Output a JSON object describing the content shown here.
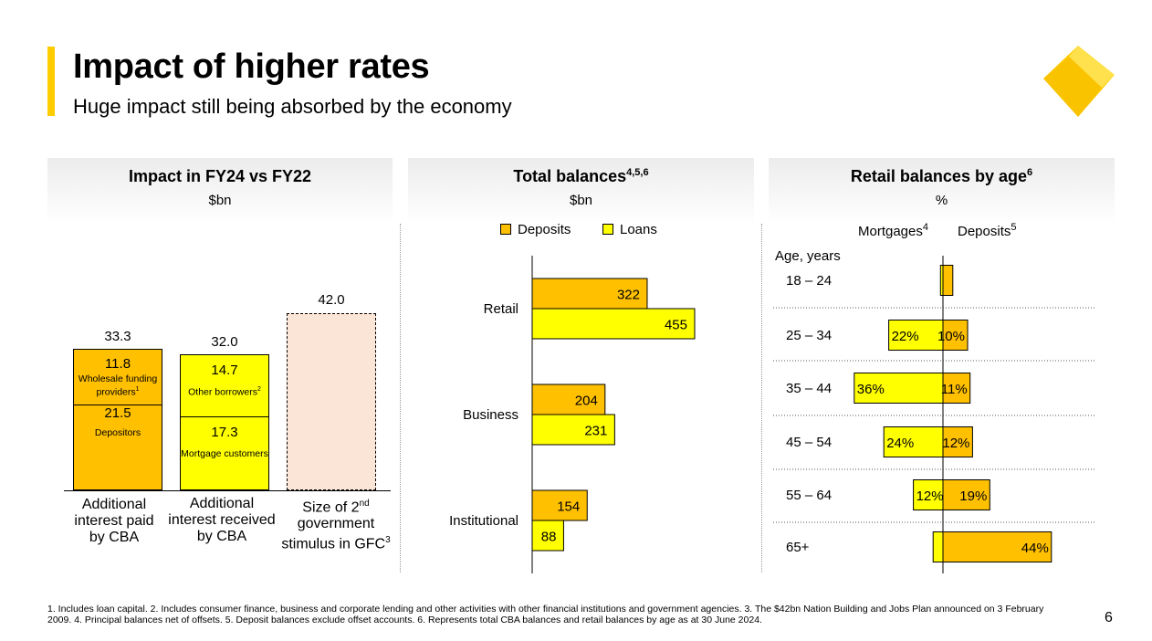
{
  "header": {
    "title": "Impact of higher rates",
    "subtitle": "Huge impact still being absorbed by the economy"
  },
  "colors": {
    "accent": "#FFCC00",
    "deposits": "#FFC000",
    "loans": "#FFFF00",
    "stimulus_fill": "#FBE5D6"
  },
  "panels": {
    "impact": {
      "title": "Impact in FY24 vs FY22",
      "unit": "$bn"
    },
    "balances": {
      "title": "Total balances",
      "title_sup": "4,5,6",
      "unit": "$bn"
    },
    "age": {
      "title": "Retail balances by age",
      "title_sup": "6",
      "unit": "%"
    }
  },
  "chart_data": [
    {
      "type": "bar",
      "stacked": true,
      "categories": [
        "Additional interest paid by CBA",
        "Additional interest received by CBA",
        "Size of 2nd government stimulus in GFC"
      ],
      "category_labels": [
        {
          "text": "Additional interest paid by CBA",
          "sup": ""
        },
        {
          "text_parts": [
            "Additional",
            "interest received",
            "by CBA"
          ]
        },
        {
          "text_parts": [
            "Size of 2",
            "nd",
            "government",
            "stimulus in GFC",
            "3"
          ]
        }
      ],
      "totals": [
        "33.3",
        "32.0",
        "42.0"
      ],
      "stacks": [
        [
          {
            "name": "Depositors",
            "value": 21.5,
            "value_label": "21.5"
          },
          {
            "name": "Wholesale funding providers",
            "sup": "1",
            "value": 11.8,
            "value_label": "11.8"
          }
        ],
        [
          {
            "name": "Mortgage customers",
            "value": 17.3,
            "value_label": "17.3"
          },
          {
            "name": "Other borrowers",
            "sup": "2",
            "value": 14.7,
            "value_label": "14.7"
          }
        ],
        [
          {
            "name": "",
            "value": 42.0,
            "value_label": ""
          }
        ]
      ],
      "ylim": [
        0,
        50
      ]
    },
    {
      "type": "bar",
      "orientation": "horizontal",
      "categories": [
        "Retail",
        "Business",
        "Institutional"
      ],
      "series": [
        {
          "name": "Deposits",
          "values": [
            322,
            204,
            154
          ]
        },
        {
          "name": "Loans",
          "values": [
            455,
            231,
            88
          ]
        }
      ],
      "xlim": [
        0,
        500
      ],
      "legend": "top"
    },
    {
      "type": "bar",
      "orientation": "horizontal",
      "diverging": true,
      "y_title": "Age, years",
      "categories": [
        "18 – 24",
        "25 – 34",
        "35 – 44",
        "45 – 54",
        "55 – 64",
        "65+"
      ],
      "series": [
        {
          "name": "Mortgages",
          "sup": "4",
          "values": [
            1,
            22,
            36,
            24,
            12,
            4
          ],
          "labels": [
            "",
            "22%",
            "36%",
            "24%",
            "12%",
            ""
          ]
        },
        {
          "name": "Deposits",
          "sup": "5",
          "values": [
            4,
            10,
            11,
            12,
            19,
            44
          ],
          "labels": [
            "",
            "10%",
            "11%",
            "12%",
            "19%",
            "44%"
          ]
        }
      ],
      "legend": "top"
    }
  ],
  "footnote": "1. Includes loan capital.  2. Includes consumer finance, business and corporate lending and other activities with other financial institutions and government agencies.  3. The $42bn Nation Building and Jobs Plan announced on 3 February 2009.  4. Principal balances net of offsets.  5. Deposit balances exclude offset accounts.  6. Represents total CBA balances and retail balances by age as at 30 June 2024.",
  "page_number": "6"
}
